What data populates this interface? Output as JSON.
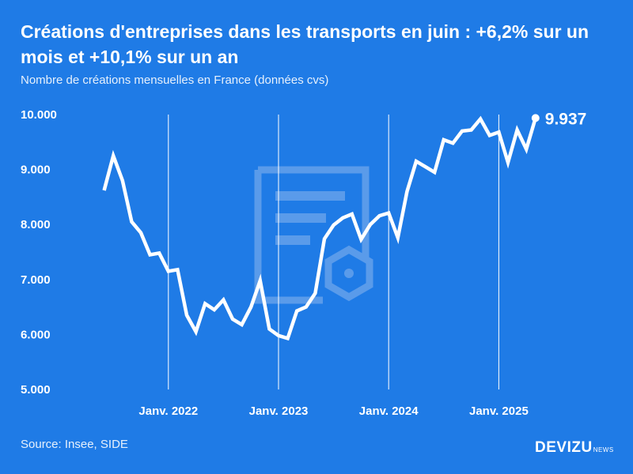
{
  "header": {
    "title": "Créations d'entreprises dans les transports en juin : +6,2% sur un mois et +10,1% sur un an",
    "subtitle": "Nombre de créations mensuelles en France (données cvs)"
  },
  "footer": {
    "source": "Source: Insee, SIDE",
    "brand": "DEVIZU",
    "brand_suffix": "NEWS"
  },
  "colors": {
    "background": "#1f7be6",
    "line": "#ffffff",
    "watermark": "#5a9bea"
  },
  "icons": {
    "watermark": "document-gear-icon"
  },
  "chart_data": {
    "type": "line",
    "title": "Créations d'entreprises dans les transports en juin : +6,2% sur un mois et +10,1% sur un an",
    "subtitle": "Nombre de créations mensuelles en France (données cvs)",
    "xlabel": "",
    "ylabel": "",
    "ylim": [
      5000,
      10000
    ],
    "yticks": [
      {
        "value": 10000,
        "label": "10.000"
      },
      {
        "value": 9000,
        "label": "9.000"
      },
      {
        "value": 8000,
        "label": "8.000"
      },
      {
        "value": 7000,
        "label": "7.000"
      },
      {
        "value": 6000,
        "label": "6.000"
      },
      {
        "value": 5000,
        "label": "5.000"
      }
    ],
    "xlim": [
      "2021-05",
      "2025-07"
    ],
    "xticks": [
      {
        "value": "2022-01",
        "label": "Janv. 2022"
      },
      {
        "value": "2023-01",
        "label": "Janv. 2023"
      },
      {
        "value": "2024-01",
        "label": "Janv. 2024"
      },
      {
        "value": "2025-01",
        "label": "Janv. 2025"
      }
    ],
    "grid": "vertical at year starts",
    "legend": "none",
    "x": [
      "2021-06",
      "2021-07",
      "2021-08",
      "2021-09",
      "2021-10",
      "2021-11",
      "2021-12",
      "2022-01",
      "2022-02",
      "2022-03",
      "2022-04",
      "2022-05",
      "2022-06",
      "2022-07",
      "2022-08",
      "2022-09",
      "2022-10",
      "2022-11",
      "2022-12",
      "2023-01",
      "2023-02",
      "2023-03",
      "2023-04",
      "2023-05",
      "2023-06",
      "2023-07",
      "2023-08",
      "2023-09",
      "2023-10",
      "2023-11",
      "2023-12",
      "2024-01",
      "2024-02",
      "2024-03",
      "2024-04",
      "2024-05",
      "2024-06",
      "2024-07",
      "2024-08",
      "2024-09",
      "2024-10",
      "2024-11",
      "2024-12",
      "2025-01",
      "2025-02",
      "2025-03",
      "2025-04",
      "2025-05",
      "2025-06"
    ],
    "series": [
      {
        "values": [
          8620,
          9250,
          8800,
          8050,
          7850,
          7450,
          7480,
          7150,
          7180,
          6350,
          6050,
          6560,
          6450,
          6630,
          6280,
          6180,
          6500,
          6980,
          6100,
          5980,
          5930,
          6430,
          6500,
          6750,
          7740,
          7990,
          8120,
          8190,
          7730,
          8000,
          8160,
          8210,
          7760,
          8600,
          9150,
          9050,
          8950,
          9540,
          9480,
          9700,
          9720,
          9920,
          9620,
          9680,
          9130,
          9720,
          9370,
          9937,
          null
        ],
        "end_label": "9.937"
      }
    ]
  }
}
